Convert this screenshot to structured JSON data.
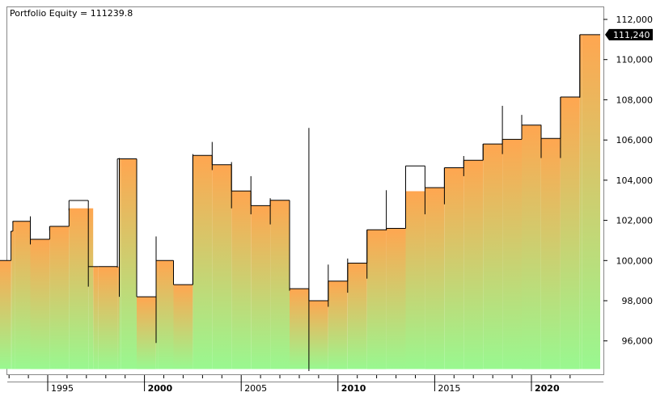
{
  "chart_data": {
    "type": "area",
    "title": "Portfolio Equity = 111239.8",
    "xlabel": "",
    "ylabel": "",
    "xlim": [
      1992.4,
      2023.0
    ],
    "ylim": [
      94300,
      112800
    ],
    "y_ticks": [
      96000,
      98000,
      100000,
      102000,
      104000,
      106000,
      108000,
      110000,
      112000
    ],
    "y_tick_labels": [
      "96,000",
      "98,000",
      "100,000",
      "102,000",
      "104,000",
      "106,000",
      "108,000",
      "110,000",
      "112,000"
    ],
    "x_ticks": [
      1995,
      2000,
      2005,
      2010,
      2015,
      2020
    ],
    "x_tick_labels": [
      "1995",
      "2000",
      "2005",
      "2010",
      "2015",
      "2020"
    ],
    "x_major_ticks": [
      2000,
      2010,
      2020
    ],
    "last_value_label": "111,240",
    "last_value": 111240,
    "area_base": 94600,
    "gradient_colors": {
      "top": "#ffa650",
      "bottom": "#99f890"
    },
    "grid": false,
    "series": [
      {
        "x": [
          1992.4,
          1993.1,
          1993.2,
          1994.1,
          1995.1,
          1996.1,
          1997.1,
          1997.6,
          1998.6,
          1998.7,
          1999.6,
          2000.6,
          2001.5,
          2002.5,
          2003.5,
          2004.5,
          2005.5,
          2006.5,
          2007.5,
          2008.5,
          2009.5,
          2010.5,
          2011.5,
          2012.5,
          2013.5,
          2014.5,
          2015.5,
          2016.5,
          2017.5,
          2018.5,
          2019.5,
          2020.5,
          2021.5,
          2022.5
        ],
        "open": [
          100000,
          101460,
          101950,
          102000,
          101700,
          102600,
          102600,
          99700,
          99700,
          105060,
          98200,
          100000,
          98800,
          105230,
          104770,
          103460,
          102730,
          103000,
          98600,
          98000,
          98980,
          99870,
          101530,
          101600,
          103450,
          103630,
          104620,
          104990,
          105800,
          106030,
          106740,
          106080,
          108140,
          111240
        ],
        "close": [
          100000,
          101460,
          101950,
          101060,
          101700,
          102990,
          99700,
          99700,
          105060,
          105060,
          98200,
          100000,
          98800,
          105230,
          104770,
          103460,
          102730,
          103000,
          98600,
          98000,
          98980,
          99870,
          101530,
          101600,
          104710,
          103630,
          104620,
          104990,
          105800,
          106030,
          106740,
          106080,
          108140,
          111240
        ],
        "high": [
          100000,
          101460,
          101960,
          102200,
          101700,
          102990,
          102600,
          99700,
          105060,
          105100,
          98200,
          101200,
          98800,
          105300,
          105900,
          104900,
          104200,
          103100,
          98700,
          106600,
          99800,
          100100,
          101530,
          103500,
          104710,
          103630,
          104620,
          105200,
          105800,
          107700,
          107250,
          106750,
          108140,
          111240
        ],
        "low": [
          100000,
          101400,
          101900,
          100800,
          101500,
          102500,
          98700,
          99700,
          99650,
          98200,
          98200,
          95900,
          98800,
          98800,
          104500,
          102600,
          102300,
          101800,
          98500,
          94500,
          97700,
          98400,
          99100,
          101500,
          101600,
          102300,
          102800,
          104200,
          105000,
          105300,
          106200,
          105100,
          105100,
          108100
        ],
        "band": [
          0,
          0.7,
          0.9,
          1,
          1,
          1,
          0.5,
          1,
          1,
          0.9,
          1,
          0.9,
          1,
          1,
          1,
          1,
          1,
          1,
          1,
          1,
          1,
          1,
          1,
          1,
          1,
          1,
          1,
          1,
          1,
          1,
          1,
          1,
          1,
          0.9
        ]
      }
    ]
  }
}
